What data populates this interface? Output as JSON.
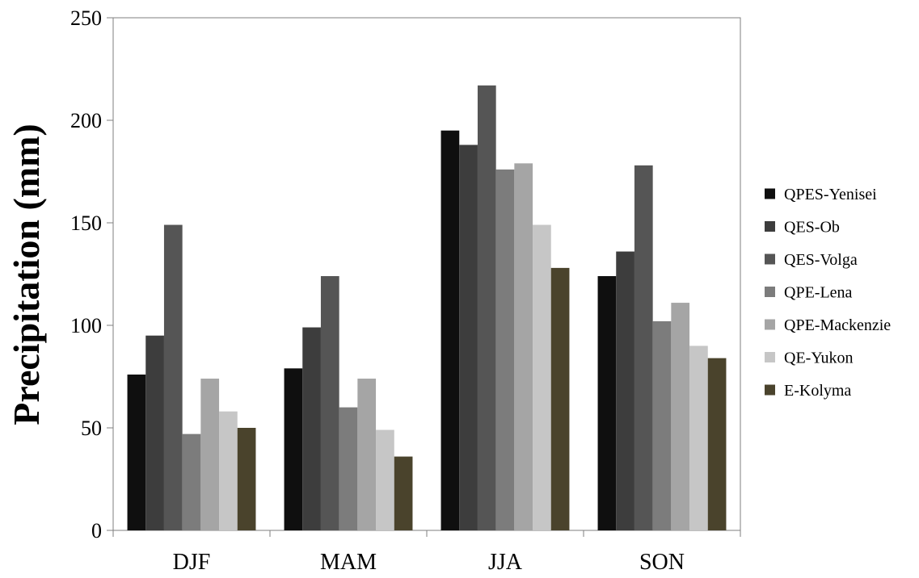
{
  "chart_data": {
    "type": "bar",
    "title": "",
    "xlabel": "",
    "ylabel": "Precipitation (mm)",
    "ylim": [
      0,
      250
    ],
    "yticks": [
      0,
      50,
      100,
      150,
      200,
      250
    ],
    "grid": false,
    "legend_position": "right",
    "categories": [
      "DJF",
      "MAM",
      "JJA",
      "SON"
    ],
    "series": [
      {
        "name": "QPES-Yenisei",
        "color": "#0f0f0f",
        "values": [
          76,
          79,
          195,
          124
        ]
      },
      {
        "name": "QES-Ob",
        "color": "#3d3d3d",
        "values": [
          95,
          99,
          188,
          136
        ]
      },
      {
        "name": "QES-Volga",
        "color": "#555555",
        "values": [
          149,
          124,
          217,
          178
        ]
      },
      {
        "name": "QPE-Lena",
        "color": "#7c7c7c",
        "values": [
          47,
          60,
          176,
          102
        ]
      },
      {
        "name": "QPE-Mackenzie",
        "color": "#a5a5a5",
        "values": [
          74,
          74,
          179,
          111
        ]
      },
      {
        "name": "QE-Yukon",
        "color": "#c6c6c6",
        "values": [
          58,
          49,
          149,
          90
        ]
      },
      {
        "name": "E-Kolyma",
        "color": "#4a432c",
        "values": [
          50,
          36,
          128,
          84
        ]
      }
    ]
  }
}
